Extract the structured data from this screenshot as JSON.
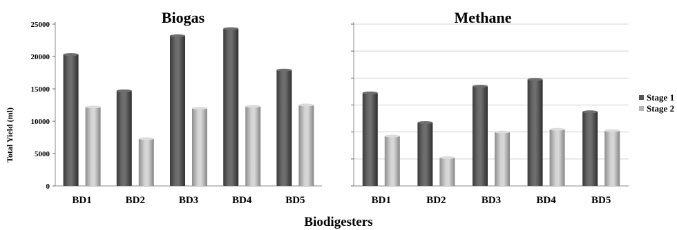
{
  "figure": {
    "xlabel": "Biodigesters",
    "ylabel": "Total Yield (ml)"
  },
  "legend": [
    {
      "label": "Stage 1",
      "color": "#555555"
    },
    {
      "label": "Stage 2",
      "color": "#b5b5b5"
    }
  ],
  "chart_data": [
    {
      "type": "bar",
      "title": "Biogas",
      "categories": [
        "BD1",
        "BD2",
        "BD3",
        "BD4",
        "BD5"
      ],
      "series": [
        {
          "name": "Stage 1",
          "values": [
            20300,
            14700,
            23200,
            24300,
            17900
          ]
        },
        {
          "name": "Stage 2",
          "values": [
            12200,
            7300,
            12000,
            12300,
            12500
          ]
        }
      ],
      "xlabel": "Biodigesters",
      "ylabel": "Total Yield (ml)",
      "ylim": [
        0,
        25000
      ],
      "yticks": [
        0,
        5000,
        10000,
        15000,
        20000,
        25000
      ],
      "grid": false
    },
    {
      "type": "bar",
      "title": "Methane",
      "categories": [
        "BD1",
        "BD2",
        "BD3",
        "BD4",
        "BD5"
      ],
      "series": [
        {
          "name": "Stage 1",
          "values": [
            3450,
            2350,
            3700,
            3950,
            2750
          ]
        },
        {
          "name": "Stage 2",
          "values": [
            1850,
            1050,
            2000,
            2100,
            2050
          ]
        }
      ],
      "ylim": [
        0,
        6000
      ],
      "yticks": [],
      "grid": true
    }
  ]
}
